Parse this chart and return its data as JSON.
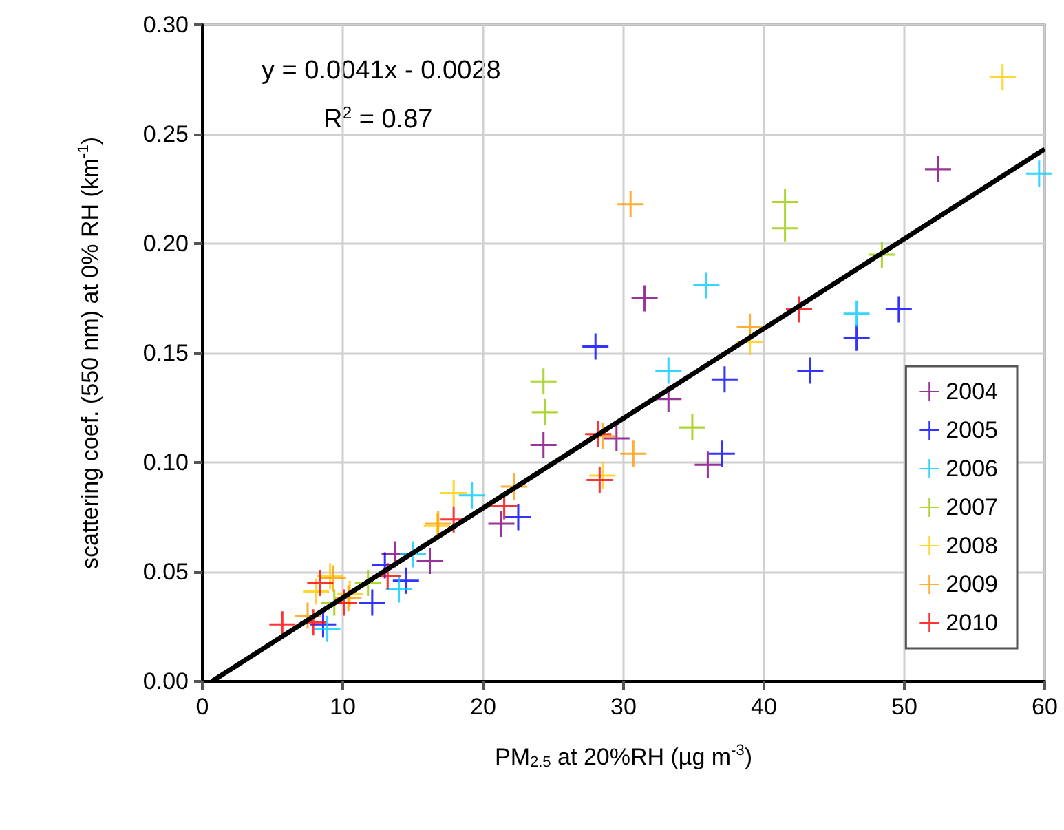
{
  "chart_data": {
    "type": "scatter",
    "xlabel": "PM$_{2.5}$ at 20%RH (µg m$^{-3}$)",
    "ylabel": "scattering coef. (550 nm) at 0% RH (km$^{-1}$)",
    "annotations": [
      "y = 0.0041x - 0.0028",
      "R$^{2}$ = 0.87"
    ],
    "xlim": [
      0,
      60
    ],
    "xticks": [
      0,
      10,
      20,
      30,
      40,
      50,
      60
    ],
    "ylim": [
      0,
      0.3
    ],
    "yticks": [
      {
        "value": 0,
        "label": "0.00"
      },
      {
        "value": 0.05,
        "label": "0.05"
      },
      {
        "value": 0.1,
        "label": "0.10"
      },
      {
        "value": 0.15,
        "label": "0.15"
      },
      {
        "value": 0.2,
        "label": "0.20"
      },
      {
        "value": 0.25,
        "label": "0.25"
      },
      {
        "value": 0.3,
        "label": "0.30"
      }
    ],
    "grid": true,
    "legend": "right",
    "marker": "cross",
    "series": [
      {
        "name": "2004",
        "color": "#800080",
        "x": [
          52.4,
          31.5,
          33.2,
          36,
          29.5,
          24.3,
          21.3,
          13.7,
          16.2
        ],
        "values": [
          0.234,
          0.175,
          0.129,
          0.099,
          0.111,
          0.108,
          0.072,
          0.058,
          0.055
        ]
      },
      {
        "name": "2005",
        "color": "#0000ff",
        "x": [
          28,
          37.2,
          37,
          43.3,
          46.6,
          49.6,
          22.5,
          12.1,
          14.5,
          8.6,
          13
        ],
        "values": [
          0.153,
          0.138,
          0.104,
          0.142,
          0.157,
          0.17,
          0.075,
          0.036,
          0.046,
          0.026,
          0.053
        ]
      },
      {
        "name": "2006",
        "color": "#00ccff",
        "x": [
          59.6,
          46.6,
          35.9,
          33.2,
          19.2,
          15,
          14,
          8.9
        ],
        "values": [
          0.232,
          0.168,
          0.181,
          0.142,
          0.085,
          0.058,
          0.042,
          0.024
        ]
      },
      {
        "name": "2007",
        "color": "#99cc00",
        "x": [
          41.5,
          41.5,
          48.4,
          24.3,
          24.4,
          34.9,
          11.8,
          9.4
        ],
        "values": [
          0.219,
          0.207,
          0.195,
          0.137,
          0.123,
          0.116,
          0.045,
          0.036
        ]
      },
      {
        "name": "2008",
        "color": "#ffcc00",
        "x": [
          57,
          39,
          28.5,
          17.9,
          16.7,
          9.1,
          8.1,
          10.5
        ],
        "values": [
          0.276,
          0.155,
          0.094,
          0.086,
          0.071,
          0.048,
          0.041,
          0.04
        ]
      },
      {
        "name": "2009",
        "color": "#ff9900",
        "x": [
          30.5,
          39,
          28.5,
          30.7,
          22.2,
          16.8,
          9.3,
          10.4,
          7.5
        ],
        "values": [
          0.218,
          0.162,
          0.112,
          0.104,
          0.089,
          0.072,
          0.047,
          0.038,
          0.03
        ]
      },
      {
        "name": "2010",
        "color": "#ff0000",
        "x": [
          42.5,
          28.2,
          28.3,
          21.5,
          17.9,
          13.2,
          8.4,
          10.1,
          5.7,
          7.9
        ],
        "values": [
          0.17,
          0.113,
          0.092,
          0.08,
          0.074,
          0.048,
          0.045,
          0.036,
          0.026,
          0.027
        ]
      },
      {
        "type": "line",
        "marker": "none",
        "color": "#000000",
        "x": [
          0.68,
          60
        ],
        "values": [
          0,
          0.2432
        ]
      }
    ]
  }
}
